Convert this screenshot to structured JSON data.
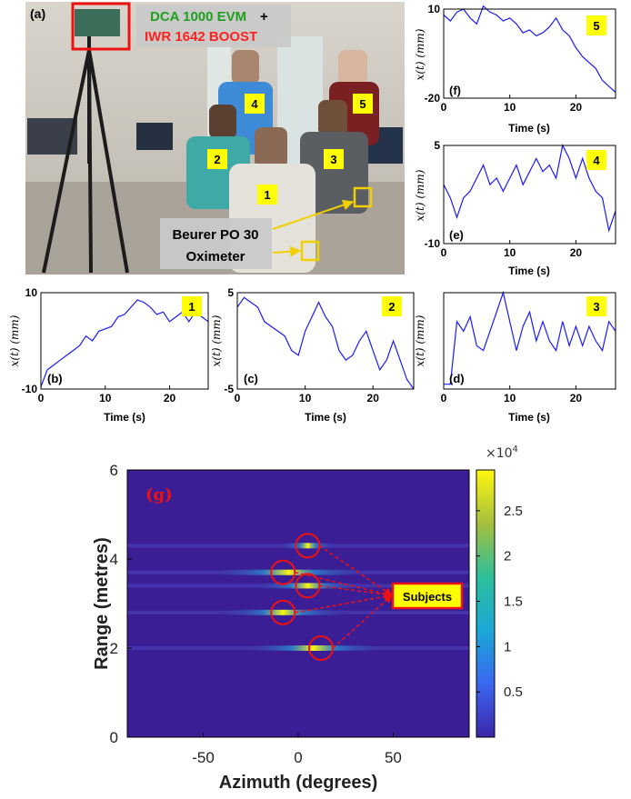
{
  "colors": {
    "trace": "#1a1aff",
    "badge": "#ffff00",
    "highlight_red": "#ee1111",
    "green_text": "#1fa01f",
    "red_text": "#ff2020",
    "heatmap_bg": "#3b1e96"
  },
  "photo": {
    "panel_label": "(a)",
    "device_line1": "DCA 1000 EVM",
    "device_plus": "+",
    "device_line2": "IWR 1642 BOOST",
    "oximeter_line1": "Beurer PO 30",
    "oximeter_line2": "Oximeter",
    "subject_badges": [
      "1",
      "2",
      "3",
      "4",
      "5"
    ]
  },
  "chart_data": [
    {
      "panel": "(b)",
      "subject": "1",
      "type": "line",
      "xlabel": "Time (s)",
      "ylabel": "x(t) (mm)",
      "xlim": [
        0,
        26
      ],
      "ylim": [
        -10,
        10
      ],
      "xticks": [
        "0",
        "10",
        "20"
      ],
      "yticks": [
        "10",
        "-10"
      ],
      "x": [
        0,
        1,
        2,
        3,
        4,
        5,
        6,
        7,
        8,
        9,
        10,
        11,
        12,
        13,
        14,
        15,
        16,
        17,
        18,
        19,
        20,
        21,
        22,
        23,
        24,
        25,
        26
      ],
      "y": [
        -9.5,
        -6,
        -5,
        -4,
        -3,
        -2,
        -1,
        1,
        0,
        2,
        2.5,
        3,
        5,
        5.5,
        7,
        8.5,
        8,
        7,
        5.5,
        6,
        4,
        5,
        6,
        4,
        6,
        5,
        4
      ]
    },
    {
      "panel": "(c)",
      "subject": "2",
      "type": "line",
      "xlabel": "Time (s)",
      "ylabel": "x(t) (mm)",
      "xlim": [
        0,
        26
      ],
      "ylim": [
        -5,
        5
      ],
      "xticks": [
        "0",
        "10",
        "20"
      ],
      "yticks": [
        "5",
        "-5"
      ],
      "x": [
        0,
        1,
        2,
        3,
        4,
        5,
        6,
        7,
        8,
        9,
        10,
        11,
        12,
        13,
        14,
        15,
        16,
        17,
        18,
        19,
        20,
        21,
        22,
        23,
        24,
        25,
        26
      ],
      "y": [
        3.5,
        4.5,
        4,
        3.5,
        2,
        1.5,
        1,
        0.5,
        -1,
        -1.5,
        1,
        2.5,
        4,
        2.5,
        1.5,
        -1,
        -2,
        -1.5,
        0,
        1,
        -1,
        -3,
        -2,
        0,
        -2,
        -4,
        -5
      ]
    },
    {
      "panel": "(d)",
      "subject": "3",
      "type": "line",
      "xlabel": "Time (s)",
      "ylabel": "x(t) (mm)",
      "xlim": [
        0,
        26
      ],
      "ylim": [
        -5,
        5
      ],
      "xticks": [
        "0",
        "10",
        "20"
      ],
      "yticks": [],
      "x": [
        0,
        1,
        2,
        3,
        4,
        5,
        6,
        7,
        8,
        9,
        10,
        11,
        12,
        13,
        14,
        15,
        16,
        17,
        18,
        19,
        20,
        21,
        22,
        23,
        24,
        25,
        26
      ],
      "y": [
        -4.5,
        -4.5,
        2,
        1,
        2.5,
        -0.5,
        -1,
        1,
        3,
        5,
        2,
        -1,
        1.5,
        3,
        0,
        2,
        0,
        -1,
        2,
        -0.5,
        1.5,
        -0.5,
        1.5,
        0,
        -1,
        2,
        1
      ]
    },
    {
      "panel": "(e)",
      "subject": "4",
      "type": "line",
      "xlabel": "Time (s)",
      "ylabel": "x(t) (mm)",
      "xlim": [
        0,
        26
      ],
      "ylim": [
        -10,
        5
      ],
      "xticks": [
        "0",
        "10",
        "20"
      ],
      "yticks": [
        "5",
        "-10"
      ],
      "x": [
        0,
        1,
        2,
        3,
        4,
        5,
        6,
        7,
        8,
        9,
        10,
        11,
        12,
        13,
        14,
        15,
        16,
        17,
        18,
        19,
        20,
        21,
        22,
        23,
        24,
        25,
        26
      ],
      "y": [
        -1,
        -3,
        -6,
        -3,
        -2,
        0,
        2,
        -1,
        0,
        -2,
        0,
        2,
        -1,
        1,
        3,
        1,
        2,
        0,
        5,
        3,
        0,
        3,
        0,
        -2,
        -3,
        -8,
        -5
      ]
    },
    {
      "panel": "(f)",
      "subject": "5",
      "type": "line",
      "xlabel": "Time (s)",
      "ylabel": "x(t) (mm)",
      "xlim": [
        0,
        26
      ],
      "ylim": [
        -20,
        10
      ],
      "xticks": [
        "0",
        "10",
        "20"
      ],
      "yticks": [
        "10",
        "-20"
      ],
      "x": [
        0,
        1,
        2,
        3,
        4,
        5,
        6,
        7,
        8,
        9,
        10,
        11,
        12,
        13,
        14,
        15,
        16,
        17,
        18,
        19,
        20,
        21,
        22,
        23,
        24,
        25,
        26
      ],
      "y": [
        8,
        6,
        9,
        10,
        7,
        5,
        11,
        9,
        8,
        6,
        7,
        5,
        2,
        3,
        1,
        2,
        4,
        7,
        3,
        1,
        -3,
        -6,
        -8,
        -10,
        -14,
        -16,
        -18
      ]
    },
    {
      "panel": "(g)",
      "type": "heatmap",
      "xlabel": "Azimuth (degrees)",
      "ylabel": "Range (metres)",
      "xlim": [
        -90,
        90
      ],
      "ylim": [
        0,
        6
      ],
      "xticks": [
        "-50",
        "0",
        "50"
      ],
      "yticks": [
        "0",
        "2",
        "4",
        "6"
      ],
      "colorbar": {
        "scale_label": "×10",
        "scale_exp": "4",
        "ticks": [
          "2.5",
          "2",
          "1.5",
          "1",
          "0.5"
        ]
      },
      "annotation": "Subjects",
      "subjects": [
        {
          "azimuth": 5,
          "range": 4.3
        },
        {
          "azimuth": -8,
          "range": 3.7
        },
        {
          "azimuth": 5,
          "range": 3.4
        },
        {
          "azimuth": -8,
          "range": 2.8
        },
        {
          "azimuth": 12,
          "range": 2.0
        }
      ]
    }
  ]
}
